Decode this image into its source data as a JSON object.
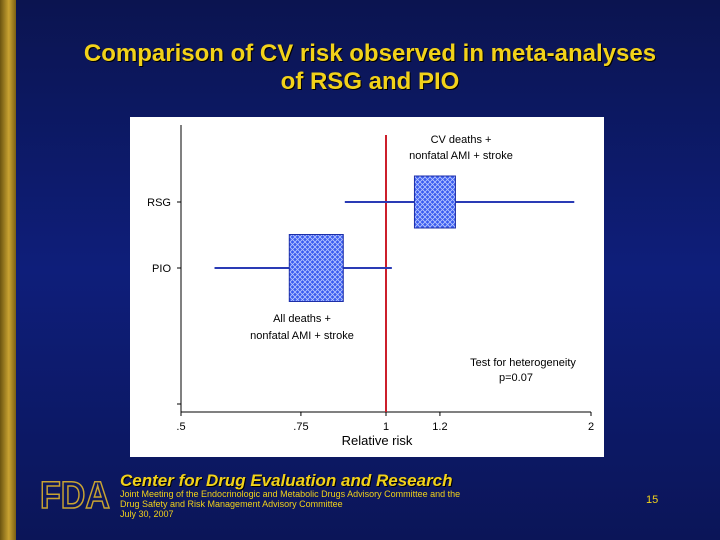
{
  "slide": {
    "title_line1": "Comparison of CV risk observed in meta-analyses",
    "title_line2": "of RSG and PIO",
    "footer": {
      "logo_text": "FDA",
      "center_name": "Center for Drug Evaluation and Research",
      "meeting_line1": "Joint Meeting of the Endocrinologic and Metabolic Drugs Advisory Committee and the",
      "meeting_line2": "Drug Safety and Risk Management Advisory Committee",
      "meeting_date": "July 30, 2007",
      "slide_number": "15"
    },
    "colors": {
      "background": "#0e1e7a",
      "title": "#f2d21a",
      "accent_bar": "#c9a332"
    }
  },
  "chart_data": {
    "type": "forest",
    "xlabel": "Relative risk",
    "x_ticks": [
      {
        "value": 0.5,
        "label": ".5"
      },
      {
        "value": 0.75,
        "label": ".75"
      },
      {
        "value": 1,
        "label": "1"
      },
      {
        "value": 1.2,
        "label": "1.2"
      },
      {
        "value": 2,
        "label": "2"
      }
    ],
    "reference_line": 1,
    "series": [
      {
        "name": "RSG",
        "point": 1.18,
        "ci_low": 0.87,
        "ci_high": 1.89
      },
      {
        "name": "PIO",
        "point": 0.79,
        "ci_low": 0.56,
        "ci_high": 1.02
      }
    ],
    "annotations": {
      "rsg_line1": "CV deaths +",
      "rsg_line2": "nonfatal AMI + stroke",
      "pio_line1": "All deaths +",
      "pio_line2": "nonfatal AMI + stroke",
      "het_line1": "Test for heterogeneity",
      "het_line2": "p=0.07"
    },
    "colors": {
      "ci_line": "#2a3bb5",
      "box_fill": "#3a5cf0",
      "reference": "#cc1f2b",
      "axis": "#000000"
    }
  }
}
